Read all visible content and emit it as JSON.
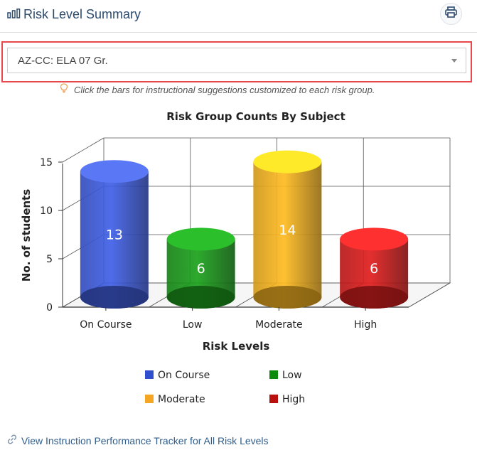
{
  "header": {
    "title": "Risk Level Summary",
    "title_icon": "bar-chart-icon",
    "print_icon": "printer-icon"
  },
  "filter": {
    "selected": "AZ-CC: ELA 07 Gr.",
    "highlight_color": "#e8484b"
  },
  "hint": {
    "text": "Click the bars for instructional suggestions customized to each risk group.",
    "icon": "lightbulb-icon"
  },
  "chart_data": {
    "type": "bar",
    "title": "Risk Group Counts By Subject",
    "xlabel": "Risk Levels",
    "ylabel": "No. of students",
    "categories": [
      "On Course",
      "Low",
      "Moderate",
      "High"
    ],
    "values": [
      13,
      6,
      14,
      6
    ],
    "data_labels": [
      "13",
      "6",
      "14",
      "6"
    ],
    "yticks": [
      0,
      5,
      10,
      15
    ],
    "ytick_labels": [
      "0",
      "5",
      "10",
      "15"
    ],
    "ylim": [
      0,
      15
    ],
    "colors": [
      "#3d5bdc",
      "#1a9a1a",
      "#f5b21e",
      "#d61c1c"
    ],
    "top_colors": [
      "#5a78f5",
      "#2bc02b",
      "#ffea2a",
      "#ff3030"
    ],
    "grid": true,
    "legend_placement": "bottom",
    "legend": [
      "On Course",
      "Low",
      "Moderate",
      "High"
    ],
    "legend_colors": [
      "#2f4fce",
      "#0b8a0b",
      "#f5a623",
      "#b80f0f"
    ]
  },
  "footer": {
    "link_text": "View Instruction Performance Tracker for All Risk Levels",
    "icon": "link-icon"
  }
}
